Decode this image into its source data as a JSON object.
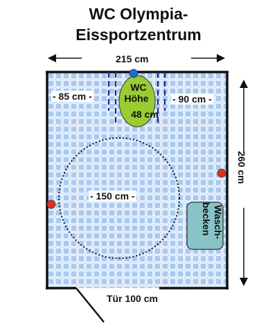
{
  "title": {
    "line1": "WC Olympia-",
    "line2": "Eissportzentrum"
  },
  "labels": {
    "width_total": "215 cm",
    "left_clearance": "- 85 cm -",
    "right_clearance": "- 90 cm -",
    "turning_circle": "- 150 cm -",
    "room_depth": "260 cm",
    "door": "Tür 100 cm"
  },
  "wc": {
    "line1": "WC",
    "line2": "Höhe",
    "line3": "48 cm"
  },
  "sink": {
    "line1": "Wasch-",
    "line2": "becken"
  },
  "colors": {
    "floor_tiles": "#a9c9f0",
    "wc_fill": "#99cc33",
    "sink_fill": "#88c3c8",
    "marker_red": "#e03020",
    "marker_blue": "#1a6fcf",
    "grab_bar": "#1a2a8a"
  }
}
